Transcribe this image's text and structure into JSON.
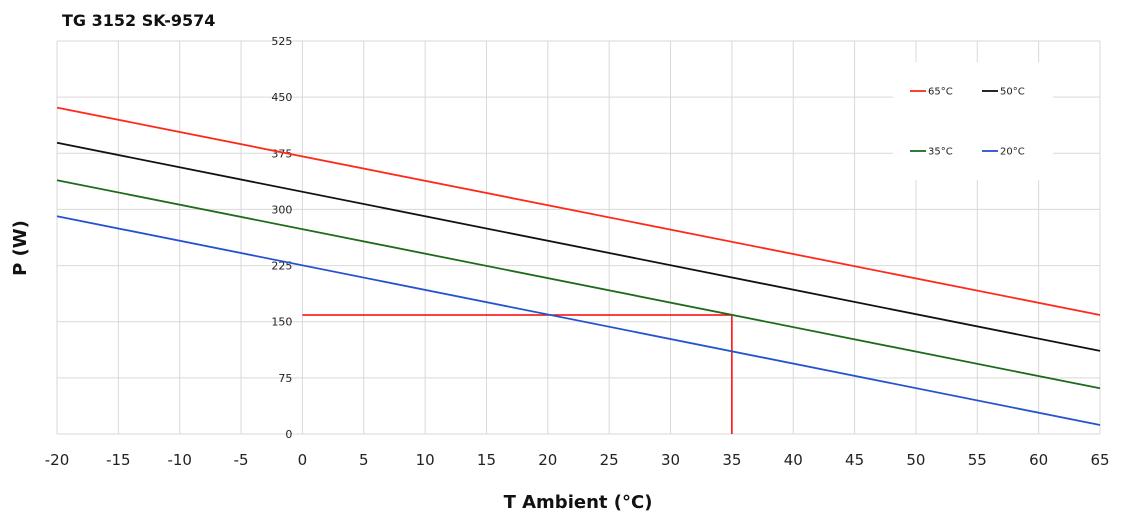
{
  "chart_data": {
    "type": "line",
    "title": "TG 3152 SK-9574",
    "xlabel": "T Ambient (°C)",
    "ylabel": "P (W)",
    "xlim": [
      -20,
      65
    ],
    "ylim": [
      0,
      525
    ],
    "x_ticks": [
      "-20",
      "-15",
      "-10",
      "-5",
      "0",
      "5",
      "10",
      "15",
      "20",
      "25",
      "30",
      "35",
      "40",
      "45",
      "50",
      "55",
      "60",
      "65"
    ],
    "y_ticks": [
      "0",
      "75",
      "150",
      "225",
      "300",
      "375",
      "450",
      "525"
    ],
    "grid": true,
    "legend_position": "top-right",
    "series": [
      {
        "name": "65°C",
        "color": "#ff2a1a",
        "x": [
          -20,
          65
        ],
        "y": [
          436,
          159
        ]
      },
      {
        "name": "50°C",
        "color": "#111111",
        "x": [
          -20,
          65
        ],
        "y": [
          389,
          111
        ]
      },
      {
        "name": "35°C",
        "color": "#1e6b1e",
        "x": [
          -20,
          65
        ],
        "y": [
          339,
          61
        ]
      },
      {
        "name": "20°C",
        "color": "#2255cc",
        "x": [
          -20,
          65
        ],
        "y": [
          291,
          12
        ]
      }
    ],
    "annotations": [
      {
        "type": "operating-point-lines",
        "color": "#ff0000",
        "x": 35,
        "y": 159,
        "x_from": 0,
        "y_from": 0
      }
    ]
  }
}
